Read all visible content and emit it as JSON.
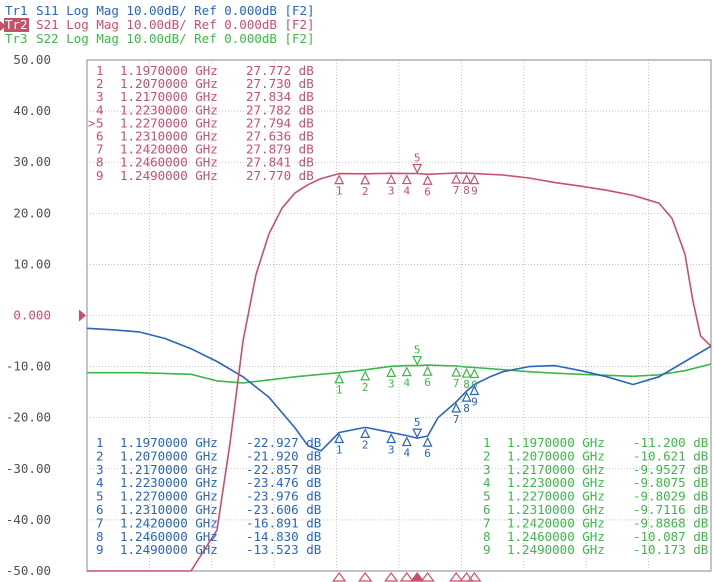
{
  "header": {
    "traces": [
      {
        "tag": "Tr1",
        "param": "S11",
        "text": "Log Mag 10.00dB/ Ref 0.000dB [F2]",
        "color": "#2a64c0",
        "active": false
      },
      {
        "tag": "Tr2",
        "param": "S21",
        "text": "Log Mag 10.00dB/ Ref 0.000dB [F2]",
        "color": "#c8506a",
        "active": true
      },
      {
        "tag": "Tr3",
        "param": "S22",
        "text": "Log Mag 10.00dB/ Ref 0.000dB [F2]",
        "color": "#3cb84a",
        "active": false
      }
    ]
  },
  "reference_label": "0.000",
  "chart_data": {
    "type": "line",
    "title": "",
    "xlabel": "",
    "ylabel": "",
    "ylim": [
      -50,
      50
    ],
    "xlim": [
      1.1,
      1.34
    ],
    "x_unit": "GHz",
    "y_unit": "dB",
    "grid": true,
    "y_ticks": [
      "50.00",
      "40.00",
      "30.00",
      "20.00",
      "10.00",
      "0.000",
      "-10.00",
      "-20.00",
      "-30.00",
      "-40.00",
      "-50.00"
    ],
    "y_tick_values": [
      50,
      40,
      30,
      20,
      10,
      0,
      -10,
      -20,
      -30,
      -40,
      -50
    ],
    "colors": {
      "S11": "#2a64c0",
      "S21": "#c8506a",
      "S22": "#3cb84a",
      "grid": "#a0a0a0",
      "axis": "#888888"
    },
    "series": [
      {
        "name": "S21",
        "color": "#c8506a",
        "x": [
          1.1,
          1.12,
          1.14,
          1.15,
          1.155,
          1.16,
          1.165,
          1.17,
          1.175,
          1.18,
          1.185,
          1.19,
          1.197,
          1.207,
          1.217,
          1.223,
          1.227,
          1.231,
          1.242,
          1.246,
          1.249,
          1.26,
          1.27,
          1.28,
          1.29,
          1.3,
          1.31,
          1.32,
          1.325,
          1.33,
          1.333,
          1.336,
          1.34
        ],
        "y": [
          -50,
          -50,
          -50,
          -42,
          -25,
          -5,
          8,
          16,
          21,
          24,
          25.6,
          26.8,
          27.77,
          27.73,
          27.83,
          27.78,
          27.79,
          27.64,
          27.88,
          27.84,
          27.77,
          27.5,
          26.9,
          26.0,
          25.3,
          24.5,
          23.5,
          22,
          19,
          12,
          3,
          -4,
          -6
        ]
      },
      {
        "name": "S11",
        "color": "#2a64c0",
        "x": [
          1.1,
          1.11,
          1.12,
          1.13,
          1.14,
          1.15,
          1.16,
          1.17,
          1.18,
          1.185,
          1.19,
          1.197,
          1.207,
          1.217,
          1.223,
          1.227,
          1.231,
          1.235,
          1.242,
          1.246,
          1.249,
          1.255,
          1.26,
          1.27,
          1.28,
          1.29,
          1.3,
          1.31,
          1.32,
          1.33,
          1.34
        ],
        "y": [
          -2.5,
          -2.8,
          -3.2,
          -4.5,
          -6.5,
          -9,
          -12,
          -16,
          -22,
          -25.5,
          -26.5,
          -22.9,
          -21.9,
          -22.9,
          -23.5,
          -24.0,
          -23.6,
          -20,
          -16.9,
          -14.8,
          -13.5,
          -12,
          -11,
          -10,
          -9.8,
          -10.8,
          -12,
          -13.5,
          -12,
          -9,
          -6
        ]
      },
      {
        "name": "S22",
        "color": "#3cb84a",
        "x": [
          1.1,
          1.12,
          1.14,
          1.15,
          1.16,
          1.17,
          1.18,
          1.19,
          1.197,
          1.207,
          1.217,
          1.223,
          1.227,
          1.231,
          1.242,
          1.246,
          1.249,
          1.26,
          1.27,
          1.28,
          1.29,
          1.3,
          1.31,
          1.32,
          1.33,
          1.34
        ],
        "y": [
          -11.2,
          -11.2,
          -11.5,
          -12.8,
          -13.2,
          -12.6,
          -12.0,
          -11.5,
          -11.2,
          -10.62,
          -9.95,
          -9.81,
          -9.8,
          -9.71,
          -9.89,
          -10.09,
          -10.17,
          -10.6,
          -11.0,
          -11.3,
          -11.5,
          -11.7,
          -11.9,
          -11.6,
          -10.8,
          -9.5
        ]
      }
    ],
    "marker_freqs": [
      1.197,
      1.207,
      1.217,
      1.223,
      1.227,
      1.231,
      1.242,
      1.246,
      1.249
    ],
    "marker_ids": [
      "1",
      "2",
      "3",
      "4",
      "5",
      "6",
      "7",
      "8",
      "9"
    ],
    "active_marker": "5",
    "marker_tables": [
      {
        "trace": "S21",
        "color": "#c8506a",
        "rows": [
          {
            "id": "1",
            "freq": "1.1970000 GHz",
            "value": "27.772 dB",
            "active": false
          },
          {
            "id": "2",
            "freq": "1.2070000 GHz",
            "value": "27.730 dB",
            "active": false
          },
          {
            "id": "3",
            "freq": "1.2170000 GHz",
            "value": "27.834 dB",
            "active": false
          },
          {
            "id": "4",
            "freq": "1.2230000 GHz",
            "value": "27.782 dB",
            "active": false
          },
          {
            "id": "5",
            "freq": "1.2270000 GHz",
            "value": "27.794 dB",
            "active": true
          },
          {
            "id": "6",
            "freq": "1.2310000 GHz",
            "value": "27.636 dB",
            "active": false
          },
          {
            "id": "7",
            "freq": "1.2420000 GHz",
            "value": "27.879 dB",
            "active": false
          },
          {
            "id": "8",
            "freq": "1.2460000 GHz",
            "value": "27.841 dB",
            "active": false
          },
          {
            "id": "9",
            "freq": "1.2490000 GHz",
            "value": "27.770 dB",
            "active": false
          }
        ]
      },
      {
        "trace": "S11",
        "color": "#2a64c0",
        "rows": [
          {
            "id": "1",
            "freq": "1.1970000 GHz",
            "value": "-22.927 dB",
            "active": false
          },
          {
            "id": "2",
            "freq": "1.2070000 GHz",
            "value": "-21.920 dB",
            "active": false
          },
          {
            "id": "3",
            "freq": "1.2170000 GHz",
            "value": "-22.857 dB",
            "active": false
          },
          {
            "id": "4",
            "freq": "1.2230000 GHz",
            "value": "-23.476 dB",
            "active": false
          },
          {
            "id": "5",
            "freq": "1.2270000 GHz",
            "value": "-23.976 dB",
            "active": false
          },
          {
            "id": "6",
            "freq": "1.2310000 GHz",
            "value": "-23.606 dB",
            "active": false
          },
          {
            "id": "7",
            "freq": "1.2420000 GHz",
            "value": "-16.891 dB",
            "active": false
          },
          {
            "id": "8",
            "freq": "1.2460000 GHz",
            "value": "-14.830 dB",
            "active": false
          },
          {
            "id": "9",
            "freq": "1.2490000 GHz",
            "value": "-13.523 dB",
            "active": false
          }
        ]
      },
      {
        "trace": "S22",
        "color": "#3cb84a",
        "rows": [
          {
            "id": "1",
            "freq": "1.1970000 GHz",
            "value": "-11.200 dB",
            "active": false
          },
          {
            "id": "2",
            "freq": "1.2070000 GHz",
            "value": "-10.621 dB",
            "active": false
          },
          {
            "id": "3",
            "freq": "1.2170000 GHz",
            "value": "-9.9527 dB",
            "active": false
          },
          {
            "id": "4",
            "freq": "1.2230000 GHz",
            "value": "-9.8075 dB",
            "active": false
          },
          {
            "id": "5",
            "freq": "1.2270000 GHz",
            "value": "-9.8029 dB",
            "active": false
          },
          {
            "id": "6",
            "freq": "1.2310000 GHz",
            "value": "-9.7116 dB",
            "active": false
          },
          {
            "id": "7",
            "freq": "1.2420000 GHz",
            "value": "-9.8868 dB",
            "active": false
          },
          {
            "id": "8",
            "freq": "1.2460000 GHz",
            "value": "-10.087 dB",
            "active": false
          },
          {
            "id": "9",
            "freq": "1.2490000 GHz",
            "value": "-10.173 dB",
            "active": false
          }
        ]
      }
    ]
  }
}
